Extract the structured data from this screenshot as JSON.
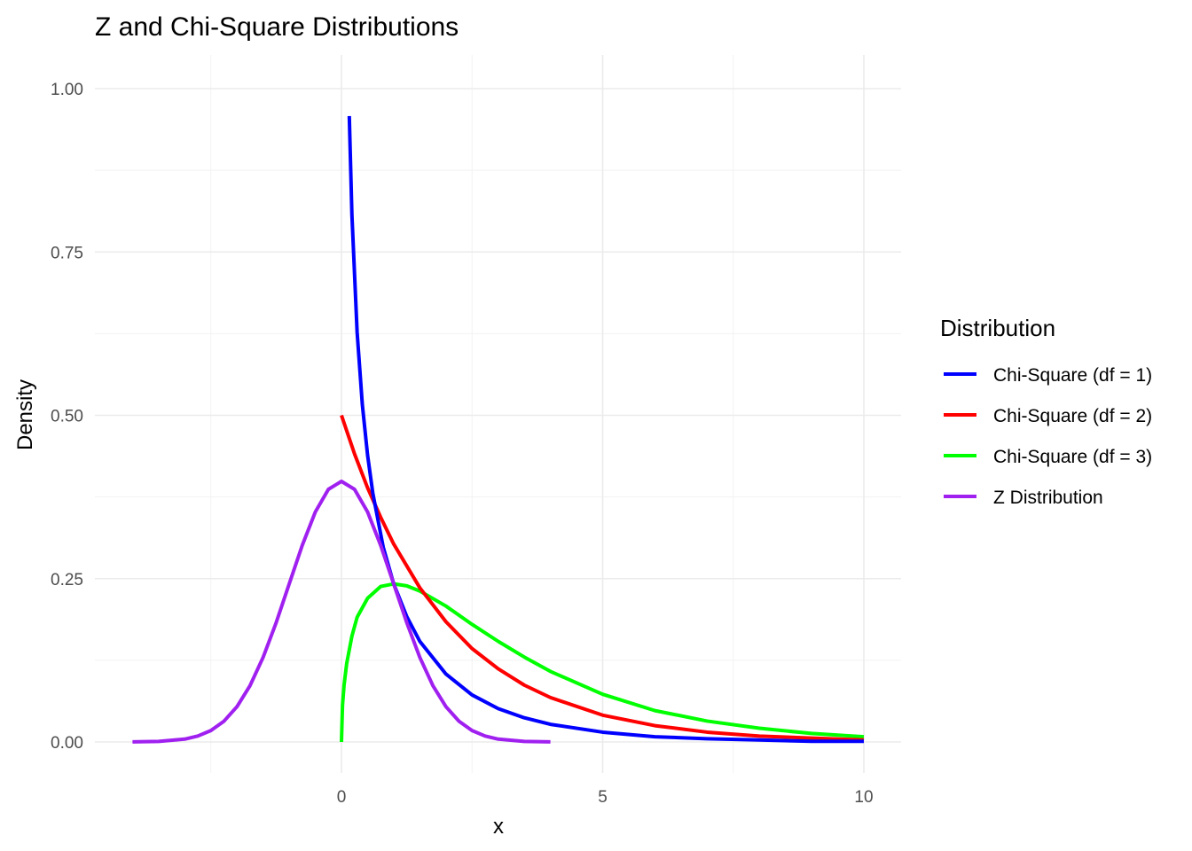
{
  "chart_data": {
    "type": "line",
    "title": "Z and Chi-Square Distributions",
    "xlabel": "x",
    "ylabel": "Density",
    "xlim": [
      -4,
      10
    ],
    "ylim": [
      0,
      1
    ],
    "x_ticks": [
      0,
      5,
      10
    ],
    "x_tick_labels": [
      "0",
      "5",
      "10"
    ],
    "y_ticks": [
      0,
      0.25,
      0.5,
      0.75,
      1
    ],
    "y_tick_labels": [
      "0.00",
      "0.25",
      "0.50",
      "0.75",
      "1.00"
    ],
    "grid": true,
    "legend": {
      "title": "Distribution",
      "position": "right",
      "entries": [
        {
          "label": "Chi-Square (df = 1)",
          "color": "#0000ff"
        },
        {
          "label": "Chi-Square (df = 2)",
          "color": "#ff0000"
        },
        {
          "label": "Chi-Square (df = 3)",
          "color": "#00ff00"
        },
        {
          "label": "Z Distribution",
          "color": "#a020f0"
        }
      ]
    },
    "series": [
      {
        "name": "Chi-Square (df = 1)",
        "color": "#0000ff",
        "x": [
          0.15,
          0.2,
          0.3,
          0.4,
          0.5,
          0.6,
          0.8,
          1.0,
          1.25,
          1.5,
          2.0,
          2.5,
          3.0,
          3.5,
          4.0,
          5.0,
          6.0,
          7.0,
          8.0,
          9.0,
          10.0
        ],
        "y": [
          0.958,
          0.807,
          0.627,
          0.516,
          0.439,
          0.381,
          0.298,
          0.242,
          0.192,
          0.154,
          0.104,
          0.072,
          0.051,
          0.037,
          0.027,
          0.015,
          0.008,
          0.005,
          0.003,
          0.001,
          0.001
        ]
      },
      {
        "name": "Chi-Square (df = 2)",
        "color": "#ff0000",
        "x": [
          0,
          0.25,
          0.5,
          0.75,
          1.0,
          1.5,
          2.0,
          2.5,
          3.0,
          3.5,
          4.0,
          5.0,
          6.0,
          7.0,
          8.0,
          9.0,
          10.0
        ],
        "y": [
          0.5,
          0.441,
          0.389,
          0.344,
          0.303,
          0.236,
          0.184,
          0.143,
          0.112,
          0.087,
          0.068,
          0.041,
          0.025,
          0.015,
          0.009,
          0.006,
          0.003
        ]
      },
      {
        "name": "Chi-Square (df = 3)",
        "color": "#00ff00",
        "x": [
          0,
          0.02,
          0.05,
          0.1,
          0.2,
          0.3,
          0.5,
          0.75,
          1.0,
          1.25,
          1.5,
          2.0,
          2.5,
          3.0,
          3.5,
          4.0,
          5.0,
          6.0,
          7.0,
          8.0,
          9.0,
          10.0
        ],
        "y": [
          0,
          0.056,
          0.087,
          0.12,
          0.162,
          0.191,
          0.22,
          0.238,
          0.242,
          0.239,
          0.231,
          0.208,
          0.18,
          0.154,
          0.13,
          0.108,
          0.073,
          0.048,
          0.032,
          0.021,
          0.013,
          0.008
        ]
      },
      {
        "name": "Z Distribution",
        "color": "#a020f0",
        "x": [
          -4.0,
          -3.5,
          -3.0,
          -2.75,
          -2.5,
          -2.25,
          -2.0,
          -1.75,
          -1.5,
          -1.25,
          -1.0,
          -0.75,
          -0.5,
          -0.25,
          0,
          0.25,
          0.5,
          0.75,
          1.0,
          1.25,
          1.5,
          1.75,
          2.0,
          2.25,
          2.5,
          2.75,
          3.0,
          3.5,
          4.0
        ],
        "y": [
          0.0001,
          0.0009,
          0.0044,
          0.0091,
          0.0175,
          0.0317,
          0.054,
          0.0863,
          0.1295,
          0.1826,
          0.242,
          0.3011,
          0.3521,
          0.3867,
          0.3989,
          0.3867,
          0.3521,
          0.3011,
          0.242,
          0.1826,
          0.1295,
          0.0863,
          0.054,
          0.0317,
          0.0175,
          0.0091,
          0.0044,
          0.0009,
          0.0001
        ]
      }
    ]
  }
}
